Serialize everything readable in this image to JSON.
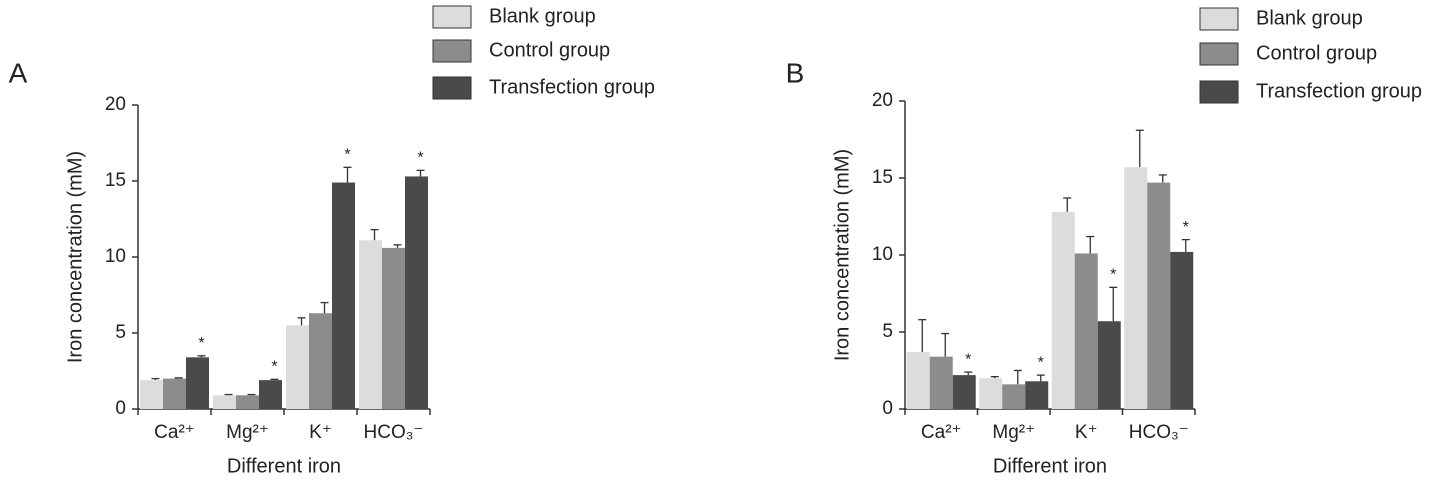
{
  "chart_data": [
    {
      "type": "bar",
      "label": "A",
      "x_label": "Different iron",
      "y_label": "Iron concentration (mM)",
      "categories": [
        "Ca²⁺",
        "Mg²⁺",
        "K⁺",
        "HCO₃⁻"
      ],
      "ylim": [
        0,
        20
      ],
      "yticks": [
        0,
        5,
        10,
        15,
        20
      ],
      "series": [
        {
          "name": "Blank group",
          "color": "#dcdcdc",
          "values": [
            1.9,
            0.9,
            5.5,
            11.1
          ],
          "errors": [
            0.1,
            0.05,
            0.5,
            0.7
          ]
        },
        {
          "name": "Control group",
          "color": "#8c8c8c",
          "values": [
            2.0,
            0.9,
            6.3,
            10.6
          ],
          "errors": [
            0.05,
            0.05,
            0.7,
            0.2
          ]
        },
        {
          "name": "Transfection group",
          "color": "#4a4a4a",
          "values": [
            3.4,
            1.9,
            14.9,
            15.3
          ],
          "errors": [
            0.1,
            0.05,
            1.0,
            0.4
          ]
        }
      ],
      "annotations": [
        {
          "text": "*",
          "series": 2,
          "category": 0
        },
        {
          "text": "*",
          "series": 2,
          "category": 1
        },
        {
          "text": "*",
          "series": 2,
          "category": 2
        },
        {
          "text": "*",
          "series": 2,
          "category": 3
        }
      ]
    },
    {
      "type": "bar",
      "label": "B",
      "x_label": "Different iron",
      "y_label": "Iron concentration (mM)",
      "categories": [
        "Ca²⁺",
        "Mg²⁺",
        "K⁺",
        "HCO₃⁻"
      ],
      "ylim": [
        0,
        20
      ],
      "yticks": [
        0,
        5,
        10,
        15,
        20
      ],
      "series": [
        {
          "name": "Blank group",
          "color": "#dcdcdc",
          "values": [
            3.7,
            2.0,
            12.8,
            15.7
          ],
          "errors": [
            2.1,
            0.1,
            0.9,
            2.4
          ]
        },
        {
          "name": "Control group",
          "color": "#8c8c8c",
          "values": [
            3.4,
            1.6,
            10.1,
            14.7
          ],
          "errors": [
            1.5,
            0.9,
            1.1,
            0.5
          ]
        },
        {
          "name": "Transfection group",
          "color": "#4a4a4a",
          "values": [
            2.2,
            1.8,
            5.7,
            10.2
          ],
          "errors": [
            0.2,
            0.4,
            2.2,
            0.8
          ]
        }
      ],
      "annotations": [
        {
          "text": "*",
          "series": 2,
          "category": 0
        },
        {
          "text": "*",
          "series": 2,
          "category": 1
        },
        {
          "text": "*",
          "series": 2,
          "category": 2
        },
        {
          "text": "*",
          "series": 2,
          "category": 3
        }
      ]
    }
  ]
}
